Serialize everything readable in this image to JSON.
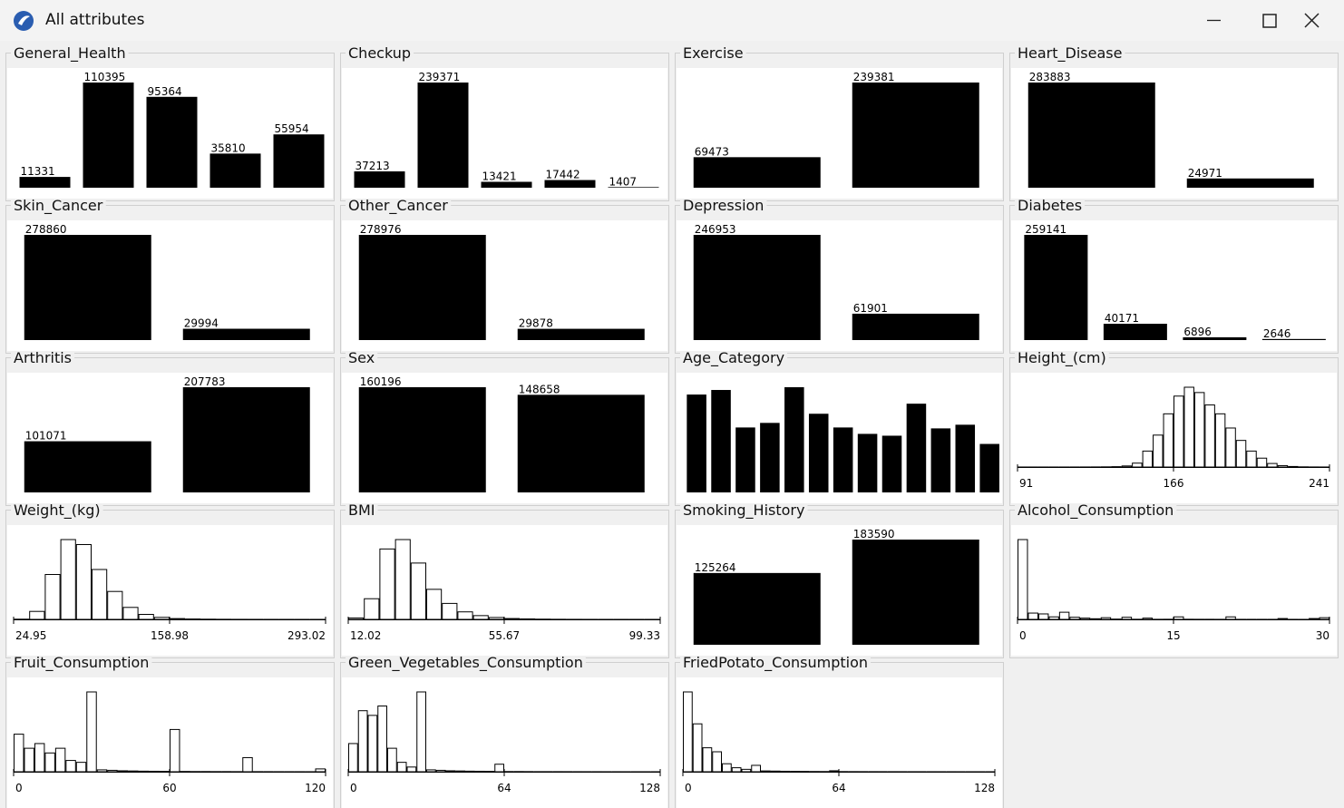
{
  "window": {
    "title": "All attributes"
  },
  "chart_data": [
    {
      "type": "bar",
      "title": "General_Health",
      "values": [
        11331,
        110395,
        95364,
        35810,
        55954
      ],
      "color": "#000000"
    },
    {
      "type": "bar",
      "title": "Checkup",
      "values": [
        37213,
        239371,
        13421,
        17442,
        1407
      ],
      "color": "#000000"
    },
    {
      "type": "bar",
      "title": "Exercise",
      "values": [
        69473,
        239381
      ],
      "color": "#000000"
    },
    {
      "type": "bar",
      "title": "Heart_Disease",
      "values": [
        283883,
        24971
      ],
      "color": "#000000"
    },
    {
      "type": "bar",
      "title": "Skin_Cancer",
      "values": [
        278860,
        29994
      ],
      "color": "#000000"
    },
    {
      "type": "bar",
      "title": "Other_Cancer",
      "values": [
        278976,
        29878
      ],
      "color": "#000000"
    },
    {
      "type": "bar",
      "title": "Depression",
      "values": [
        246953,
        61901
      ],
      "color": "#000000"
    },
    {
      "type": "bar",
      "title": "Diabetes",
      "values": [
        259141,
        40171,
        6896,
        2646
      ],
      "color": "#000000"
    },
    {
      "type": "bar",
      "title": "Arthritis",
      "values": [
        101071,
        207783
      ],
      "color": "#000000"
    },
    {
      "type": "bar",
      "title": "Sex",
      "values": [
        160196,
        148658
      ],
      "color": "#000000"
    },
    {
      "type": "bar",
      "title": "Age_Category",
      "values": [
        31030,
        32480,
        20590,
        22040,
        33350,
        24940,
        20590,
        18560,
        17980,
        28130,
        20300,
        21460,
        15370
      ],
      "color": "#000000"
    },
    {
      "type": "histogram",
      "title": "Height_(cm)",
      "bins": [
        91,
        96,
        101,
        106,
        111,
        116,
        121,
        126,
        131,
        136,
        141,
        146,
        151,
        156,
        161,
        166,
        171,
        176,
        181,
        186,
        191,
        196,
        201,
        206,
        211,
        216,
        221,
        226,
        231,
        236,
        241
      ],
      "values": [
        20,
        20,
        20,
        20,
        20,
        30,
        40,
        60,
        100,
        200,
        600,
        2200,
        9000,
        18000,
        30000,
        40000,
        45000,
        42000,
        35000,
        30000,
        22000,
        15000,
        9000,
        5000,
        2000,
        800,
        300,
        100,
        50,
        30
      ],
      "xlim": [
        91,
        241
      ],
      "xticks": [
        91,
        166,
        241
      ],
      "color": "#000000"
    },
    {
      "type": "histogram",
      "title": "Weight_(kg)",
      "bins": [
        24.95,
        38.35,
        51.76,
        65.16,
        78.56,
        91.97,
        105.37,
        118.77,
        132.18,
        145.58,
        158.98,
        172.39,
        185.79,
        199.19,
        212.6,
        226.0,
        239.4,
        252.81,
        266.21,
        279.62,
        293.02
      ],
      "values": [
        200,
        8000,
        45000,
        80000,
        75000,
        50000,
        28000,
        12000,
        5000,
        2000,
        800,
        400,
        200,
        100,
        50,
        30,
        20,
        10,
        5,
        3
      ],
      "xlim": [
        24.95,
        293.02
      ],
      "xticks": [
        24.95,
        158.98,
        293.02
      ],
      "color": "#000000"
    },
    {
      "type": "histogram",
      "title": "BMI",
      "bins": [
        12.02,
        16.39,
        20.75,
        25.12,
        29.48,
        33.85,
        38.21,
        42.58,
        46.94,
        51.31,
        55.67,
        60.04,
        64.4,
        68.77,
        73.13,
        77.5,
        81.86,
        86.23,
        90.59,
        94.96,
        99.33
      ],
      "values": [
        1500,
        22000,
        75000,
        85000,
        60000,
        32000,
        17000,
        8000,
        4000,
        2000,
        900,
        500,
        250,
        120,
        60,
        30,
        15,
        10,
        5,
        3
      ],
      "xlim": [
        12.02,
        99.33
      ],
      "xticks": [
        12.02,
        55.67,
        99.33
      ],
      "color": "#000000"
    },
    {
      "type": "bar",
      "title": "Smoking_History",
      "values": [
        125264,
        183590
      ],
      "color": "#000000"
    },
    {
      "type": "histogram",
      "title": "Alcohol_Consumption",
      "bins": [
        0,
        1,
        2,
        3,
        4,
        5,
        6,
        7,
        8,
        9,
        10,
        11,
        12,
        13,
        14,
        15,
        16,
        17,
        18,
        19,
        20,
        21,
        22,
        23,
        24,
        25,
        26,
        27,
        28,
        29,
        30
      ],
      "values": [
        190000,
        15000,
        13000,
        6000,
        17000,
        5000,
        3000,
        1500,
        4000,
        700,
        5000,
        300,
        3000,
        200,
        300,
        6000,
        300,
        200,
        200,
        100,
        6000,
        100,
        100,
        100,
        100,
        2000,
        100,
        50,
        2000,
        4000
      ],
      "xlim": [
        0,
        30
      ],
      "xticks": [
        0,
        15,
        30
      ],
      "color": "#000000"
    },
    {
      "type": "histogram",
      "title": "Fruit_Consumption",
      "bins": [
        0,
        4,
        8,
        12,
        16,
        20,
        24,
        28,
        32,
        36,
        40,
        44,
        48,
        52,
        56,
        60,
        64,
        68,
        72,
        76,
        80,
        84,
        88,
        92,
        96,
        100,
        104,
        108,
        112,
        116,
        120
      ],
      "values": [
        40000,
        25000,
        30000,
        20000,
        25000,
        12000,
        10000,
        85000,
        2000,
        1500,
        1000,
        800,
        600,
        500,
        400,
        45000,
        300,
        200,
        200,
        150,
        150,
        100,
        15000,
        100,
        80,
        60,
        50,
        40,
        30,
        3000
      ],
      "xlim": [
        0,
        120
      ],
      "xticks": [
        0,
        60,
        120
      ],
      "color": "#000000"
    },
    {
      "type": "histogram",
      "title": "Green_Vegetables_Consumption",
      "bins": [
        0,
        4,
        8,
        12,
        16,
        20,
        24,
        28,
        32,
        36,
        40,
        44,
        48,
        52,
        56,
        60,
        64,
        68,
        72,
        76,
        80,
        84,
        88,
        92,
        96,
        100,
        104,
        108,
        112,
        116,
        120,
        124,
        128
      ],
      "values": [
        30000,
        65000,
        60000,
        70000,
        25000,
        10000,
        5000,
        85000,
        2000,
        1500,
        1000,
        800,
        600,
        500,
        400,
        8000,
        200,
        200,
        150,
        100,
        100,
        100,
        80,
        60,
        50,
        40,
        30,
        30,
        20,
        20,
        20,
        20
      ],
      "xlim": [
        0,
        128
      ],
      "xticks": [
        0,
        64,
        128
      ],
      "color": "#000000"
    },
    {
      "type": "histogram",
      "title": "FriedPotato_Consumption",
      "bins": [
        0,
        4,
        8,
        12,
        16,
        20,
        24,
        28,
        32,
        36,
        40,
        44,
        48,
        52,
        56,
        60,
        64,
        68,
        72,
        76,
        80,
        84,
        88,
        92,
        96,
        100,
        104,
        108,
        112,
        116,
        120,
        124,
        128
      ],
      "values": [
        100000,
        60000,
        30000,
        25000,
        10000,
        5000,
        3000,
        8000,
        1000,
        800,
        600,
        500,
        400,
        300,
        250,
        1200,
        200,
        150,
        120,
        100,
        90,
        80,
        70,
        60,
        50,
        40,
        30,
        30,
        20,
        20,
        20,
        20
      ],
      "xlim": [
        0,
        128
      ],
      "xticks": [
        0,
        64,
        128
      ],
      "color": "#000000"
    }
  ]
}
